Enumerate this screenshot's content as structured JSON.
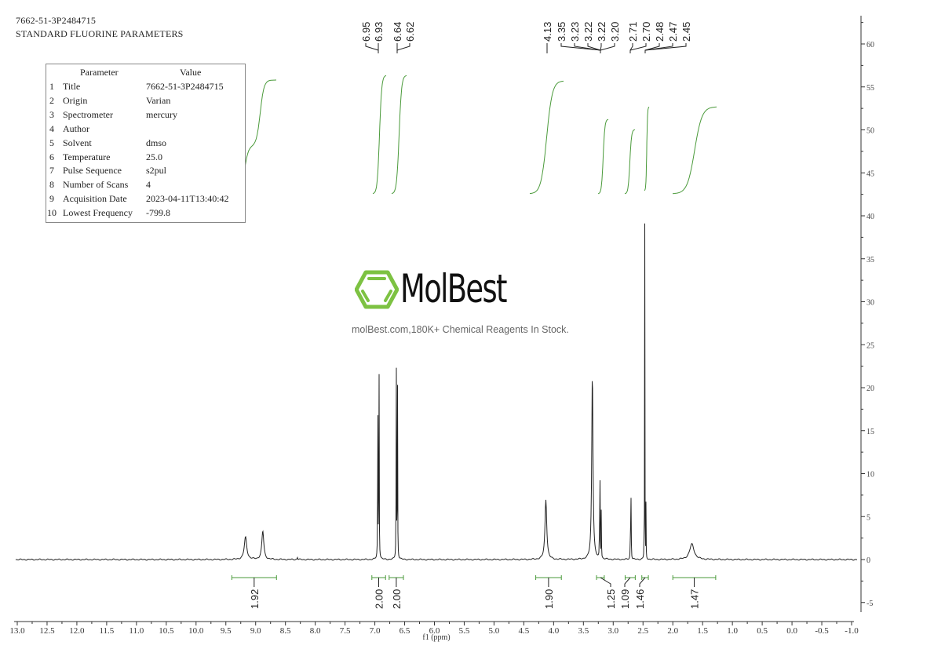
{
  "header": {
    "sample_id": "7662-51-3P2484715",
    "experiment": "STANDARD FLUORINE PARAMETERS"
  },
  "parameters_table": {
    "columns": [
      "Parameter",
      "Value"
    ],
    "rows": [
      {
        "index": "1",
        "parameter": "Title",
        "value": "7662-51-3P2484715"
      },
      {
        "index": "2",
        "parameter": "Origin",
        "value": "Varian"
      },
      {
        "index": "3",
        "parameter": "Spectrometer",
        "value": "mercury"
      },
      {
        "index": "4",
        "parameter": "Author",
        "value": ""
      },
      {
        "index": "5",
        "parameter": "Solvent",
        "value": "dmso"
      },
      {
        "index": "6",
        "parameter": "Temperature",
        "value": "25.0"
      },
      {
        "index": "7",
        "parameter": "Pulse Sequence",
        "value": "s2pul"
      },
      {
        "index": "8",
        "parameter": "Number of Scans",
        "value": "4"
      },
      {
        "index": "9",
        "parameter": "Acquisition Date",
        "value": "2023-04-11T13:40:42"
      },
      {
        "index": "10",
        "parameter": "Lowest Frequency",
        "value": "-799.8"
      }
    ]
  },
  "watermark": {
    "brand": "MolBest",
    "tagline": "molBest.com,180K+ Chemical Reagents In Stock.",
    "brand_color": "#7dc242"
  },
  "colors": {
    "spectrum": "#222222",
    "integral": "#4a9a3a",
    "axis": "#333333"
  },
  "chart_data": {
    "type": "line",
    "title": "7662-51-3P2484715 STANDARD FLUORINE PARAMETERS",
    "xlabel": "f1 (ppm)",
    "ylabel": "",
    "xlim": [
      13.0,
      -1.0
    ],
    "ylim": [
      -6,
      63
    ],
    "x_ticks": [
      "13.0",
      "12.5",
      "12.0",
      "11.5",
      "11.0",
      "10.5",
      "10.0",
      "9.5",
      "9.0",
      "8.5",
      "8.0",
      "7.5",
      "7.0",
      "6.5",
      "6.0",
      "5.5",
      "5.0",
      "4.5",
      "4.0",
      "3.5",
      "3.0",
      "2.5",
      "2.0",
      "1.5",
      "1.0",
      "0.5",
      "0.0",
      "-0.5",
      "-1.0"
    ],
    "y_ticks": [
      "-5",
      "0",
      "5",
      "10",
      "15",
      "20",
      "25",
      "30",
      "35",
      "40",
      "45",
      "50",
      "55",
      "60"
    ],
    "grid": false,
    "peak_labels": [
      "6.95",
      "6.93",
      "6.64",
      "6.62",
      "4.13",
      "3.35",
      "3.23",
      "3.22",
      "3.22",
      "3.20",
      "2.71",
      "2.70",
      "2.48",
      "2.47",
      "2.45"
    ],
    "peaks": [
      {
        "ppm": 9.17,
        "height": 2.6,
        "width": 0.05
      },
      {
        "ppm": 8.88,
        "height": 3.3,
        "width": 0.04
      },
      {
        "ppm": 8.3,
        "height": 0.3,
        "width": 0.01
      },
      {
        "ppm": 6.95,
        "height": 21.5,
        "width": 0.006
      },
      {
        "ppm": 6.93,
        "height": 26.5,
        "width": 0.006
      },
      {
        "ppm": 6.64,
        "height": 25.5,
        "width": 0.006
      },
      {
        "ppm": 6.62,
        "height": 22.0,
        "width": 0.006
      },
      {
        "ppm": 4.13,
        "height": 7.0,
        "width": 0.035
      },
      {
        "ppm": 3.35,
        "height": 21.8,
        "width": 0.025
      },
      {
        "ppm": 3.23,
        "height": 6.5,
        "width": 0.005
      },
      {
        "ppm": 3.22,
        "height": 10.0,
        "width": 0.005
      },
      {
        "ppm": 3.2,
        "height": 7.0,
        "width": 0.005
      },
      {
        "ppm": 2.71,
        "height": 5.5,
        "width": 0.006
      },
      {
        "ppm": 2.7,
        "height": 7.2,
        "width": 0.006
      },
      {
        "ppm": 2.48,
        "height": 7.0,
        "width": 0.004
      },
      {
        "ppm": 2.47,
        "height": 40.0,
        "width": 0.004
      },
      {
        "ppm": 2.45,
        "height": 6.8,
        "width": 0.004
      },
      {
        "ppm": 1.68,
        "height": 1.8,
        "width": 0.09
      }
    ],
    "integrals": [
      {
        "from": 9.4,
        "to": 8.65,
        "value": "1.92",
        "label_ppm": 9.05
      },
      {
        "from": 7.05,
        "to": 6.82,
        "value": "2.00",
        "label_ppm": 6.93
      },
      {
        "from": 6.76,
        "to": 6.52,
        "value": "2.00",
        "label_ppm": 6.63
      },
      {
        "from": 4.3,
        "to": 3.87,
        "value": "1.90",
        "label_ppm": 4.13
      },
      {
        "from": 3.28,
        "to": 3.15,
        "value": "1.25",
        "label_ppm": 3.15
      },
      {
        "from": 2.8,
        "to": 2.63,
        "value": "1.09",
        "label_ppm": 2.72
      },
      {
        "from": 2.52,
        "to": 2.41,
        "value": "1.46",
        "label_ppm": 2.48
      },
      {
        "from": 2.0,
        "to": 1.28,
        "value": "1.47",
        "label_ppm": 1.67
      }
    ]
  }
}
